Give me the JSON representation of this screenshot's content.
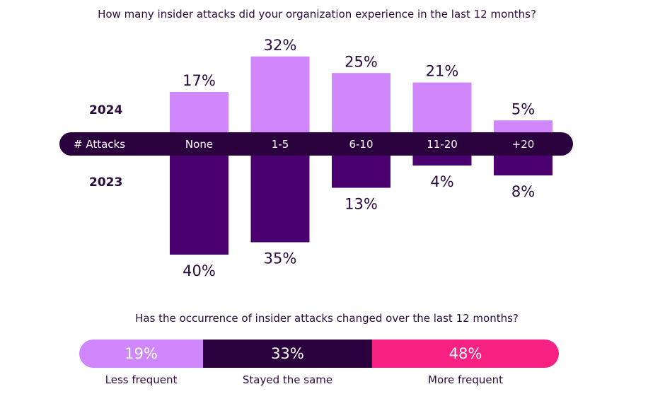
{
  "chart_data": [
    {
      "type": "bar",
      "title": "How many insider attacks did your organization experience in the last 12 months?",
      "axis_label": "# Attacks",
      "categories": [
        "None",
        "1-5",
        "6-10",
        "11-20",
        "+20"
      ],
      "series": [
        {
          "name": "2024",
          "values": [
            17,
            32,
            25,
            21,
            5
          ],
          "color": "#cf87fb",
          "direction": "up"
        },
        {
          "name": "2023",
          "values": [
            40,
            35,
            13,
            4,
            8
          ],
          "color": "#4a006e",
          "direction": "down"
        }
      ],
      "unit": "%",
      "axis_band_color": "#2a003d"
    },
    {
      "type": "bar",
      "subtype": "stacked-horizontal",
      "title": "Has the occurrence of insider attacks changed over the last 12 months?",
      "categories": [
        "Less frequent",
        "Stayed the same",
        "More frequent"
      ],
      "values": [
        19,
        33,
        48
      ],
      "labels": [
        "19%",
        "33%",
        "48%"
      ],
      "colors": [
        "#cf87fb",
        "#2a003d",
        "#f72183"
      ]
    }
  ]
}
